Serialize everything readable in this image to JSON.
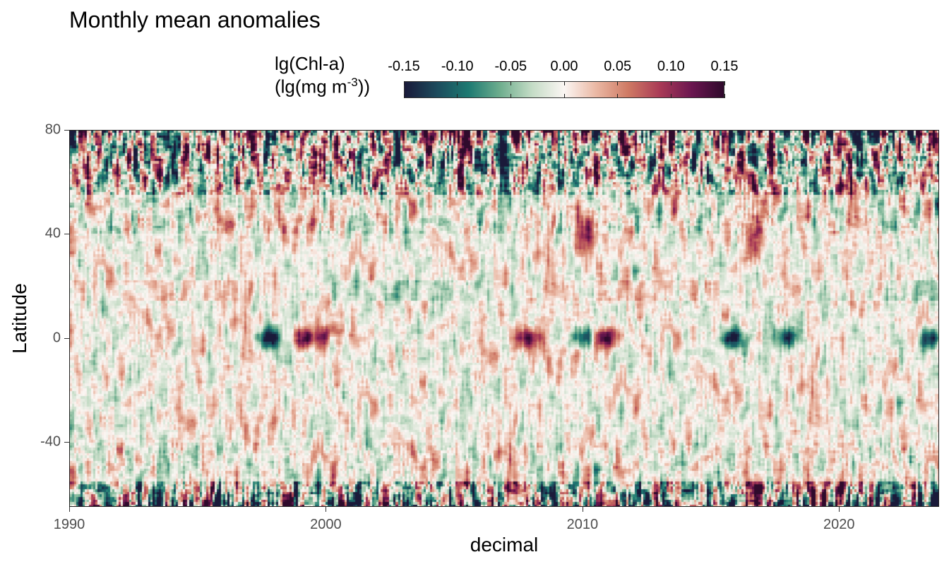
{
  "chart_data": {
    "type": "heatmap",
    "title": "Monthly mean anomalies",
    "xlabel": "decimal",
    "ylabel": "Latitude",
    "legend": {
      "title_line1": "lg(Chl-a)",
      "title_line2_prefix": "(lg(mg m",
      "title_line2_sup": "-3",
      "title_line2_suffix": "))",
      "placement": "top",
      "range": [
        -0.15,
        0.15
      ],
      "ticks": [
        -0.15,
        -0.1,
        -0.05,
        0.0,
        0.05,
        0.1,
        0.15
      ],
      "tick_labels": [
        "-0.15",
        "-0.10",
        "-0.05",
        "0.00",
        "0.05",
        "0.10",
        "0.15"
      ],
      "colormap": [
        "#1a1a3a",
        "#1c4a5c",
        "#1d7a72",
        "#6fae8e",
        "#c5dcc6",
        "#fbf6f3",
        "#eab8a4",
        "#cf7a64",
        "#a93a56",
        "#6a1650",
        "#2f0a2c"
      ]
    },
    "xlim": [
      1990,
      2023.9
    ],
    "ylim": [
      -65,
      80
    ],
    "x_ticks": [
      1990,
      2000,
      2010,
      2020
    ],
    "x_tick_labels": [
      "1990",
      "2000",
      "2010",
      "2020"
    ],
    "y_ticks": [
      80,
      40,
      0,
      -40
    ],
    "y_tick_labels": [
      "80",
      "40",
      "0",
      "-40"
    ],
    "grid": false,
    "notable_features": [
      {
        "x": 1997.8,
        "y": 0,
        "value": -0.15
      },
      {
        "x": 1999.3,
        "y": 0,
        "value": 0.15
      },
      {
        "x": 2000.2,
        "y": 2,
        "value": 0.1
      },
      {
        "x": 2007.9,
        "y": 0,
        "value": 0.15
      },
      {
        "x": 2010.0,
        "y": 0,
        "value": -0.12
      },
      {
        "x": 2010.9,
        "y": 0,
        "value": 0.15
      },
      {
        "x": 2015.8,
        "y": 0,
        "value": -0.15
      },
      {
        "x": 2018.0,
        "y": 0,
        "value": -0.12
      },
      {
        "x": 2023.7,
        "y": 0,
        "value": -0.15
      },
      {
        "x": 2010.2,
        "y": 40,
        "value": 0.12
      },
      {
        "x": 2016.6,
        "y": 40,
        "value": 0.1
      }
    ]
  }
}
